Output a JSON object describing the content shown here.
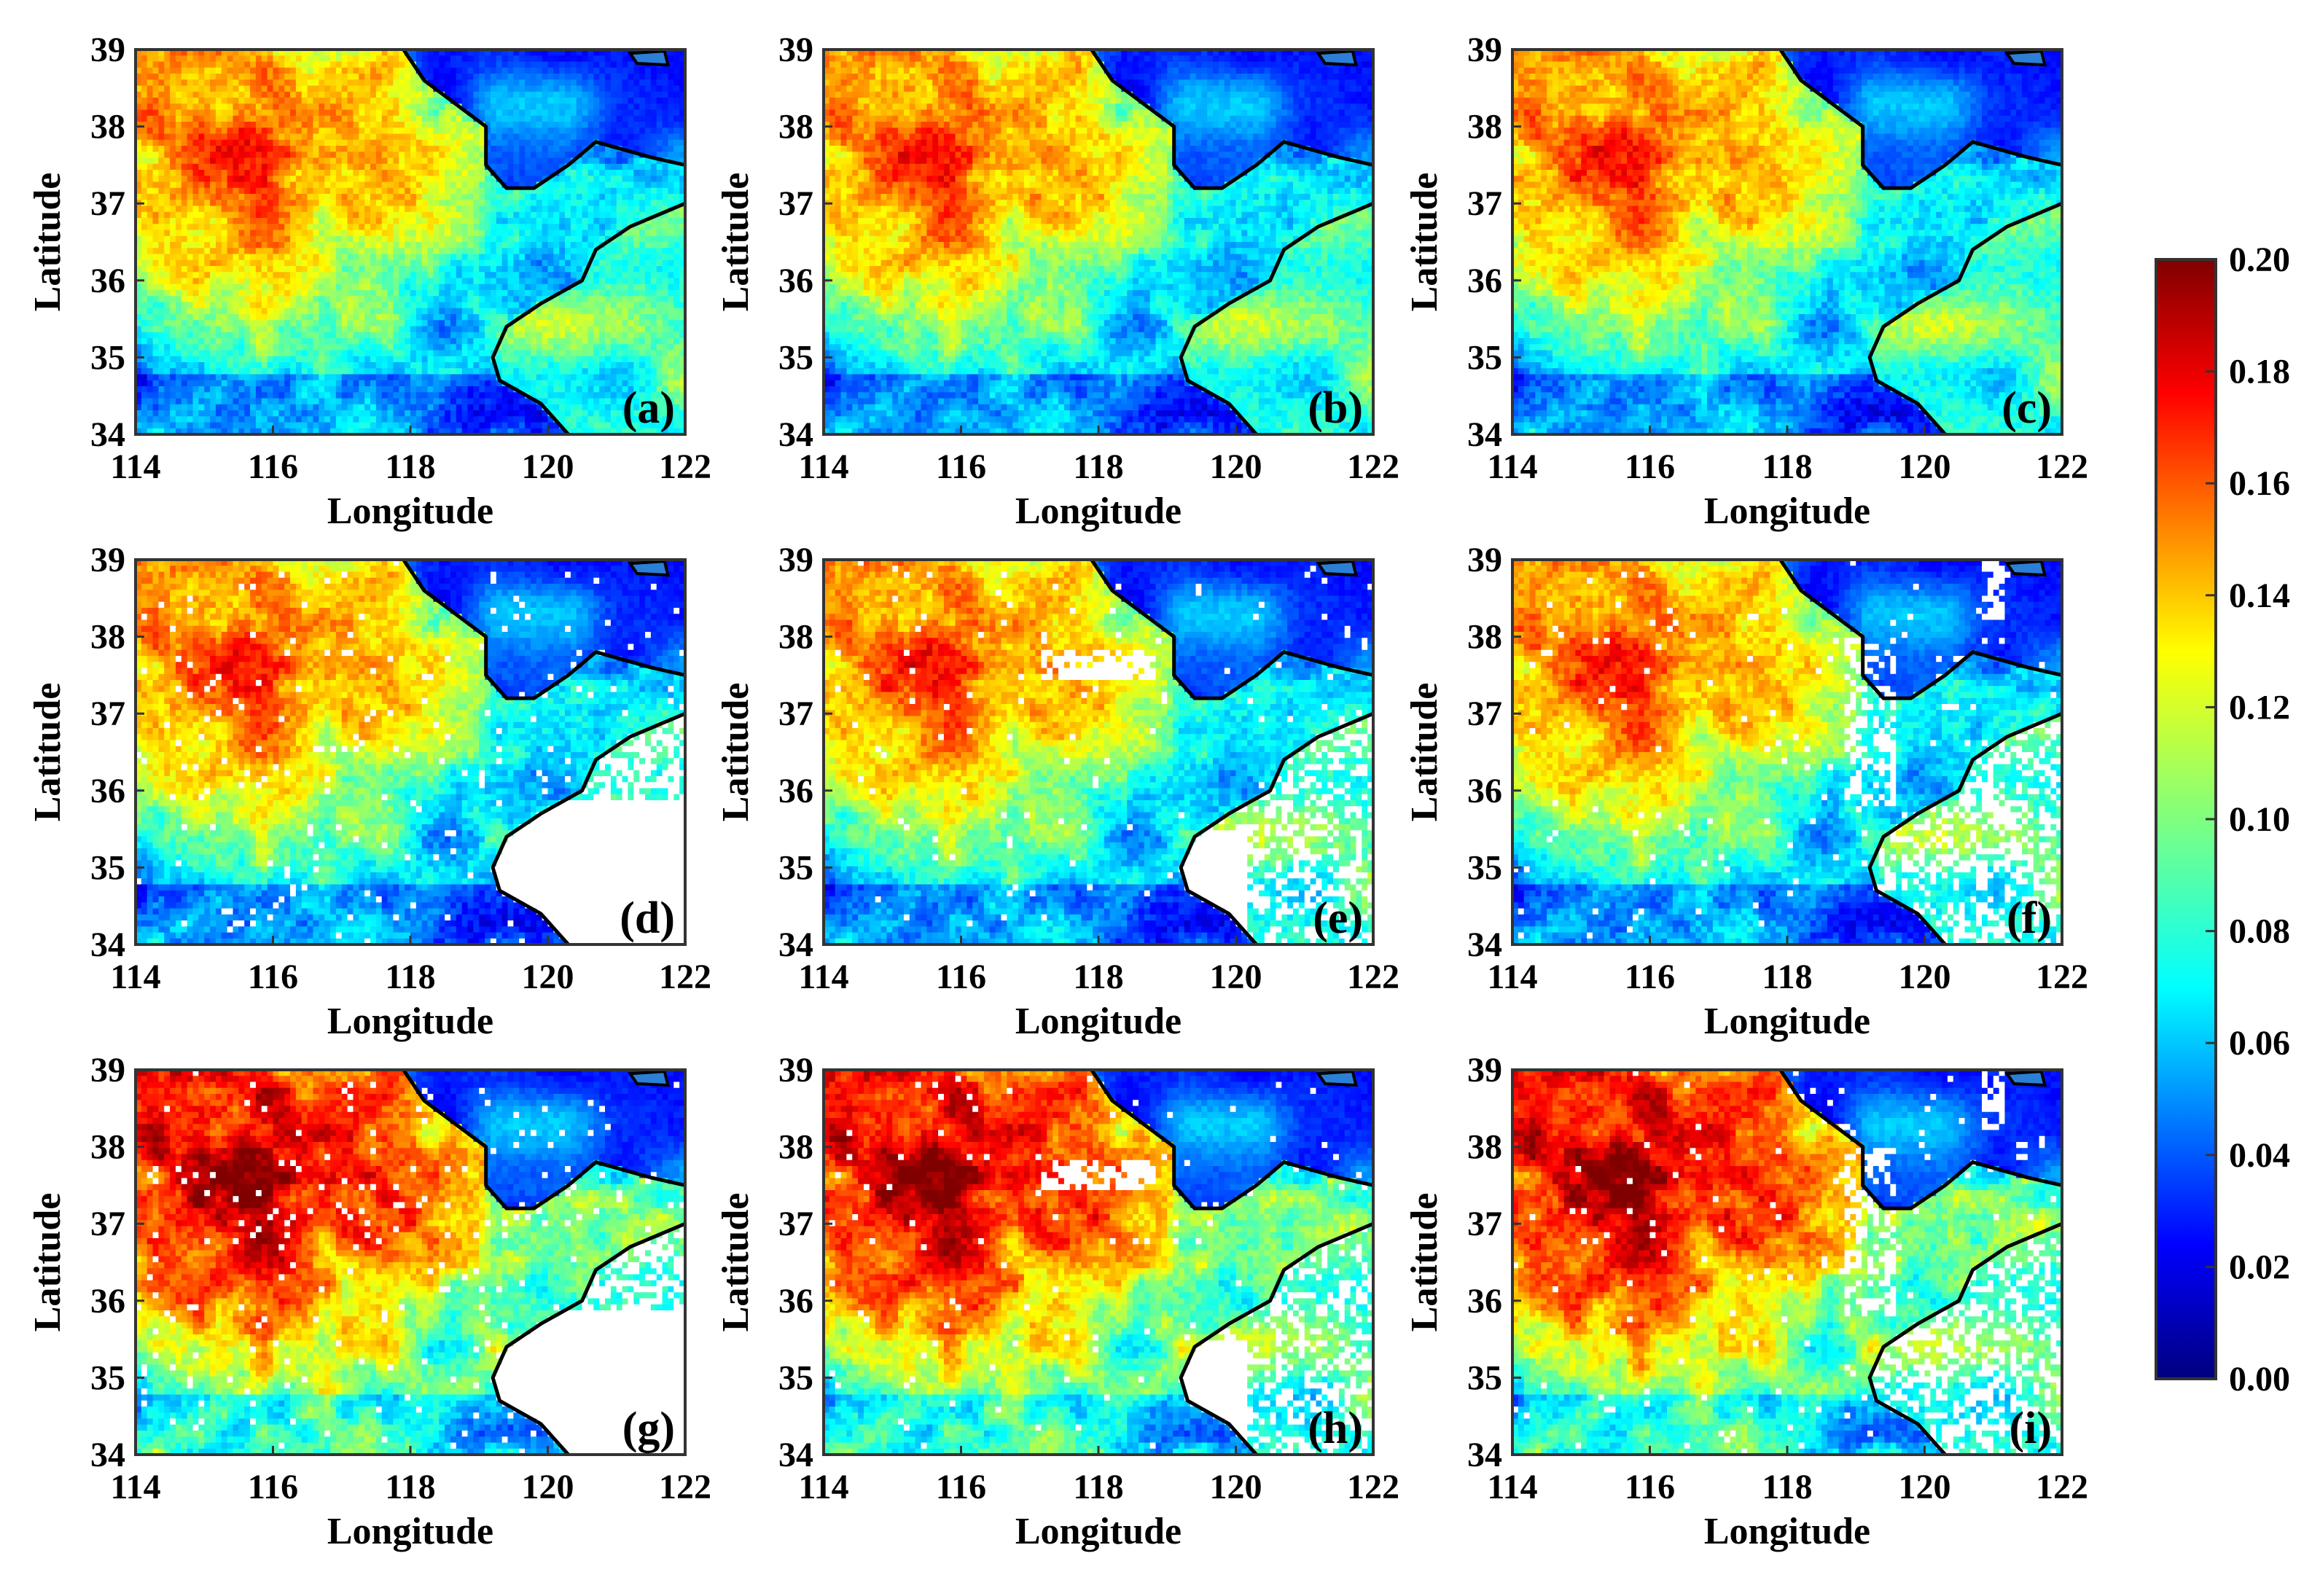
{
  "chart_data": {
    "type": "heatmap",
    "description_grid": "3x3 panel grid of gridded spatial fields",
    "xlabel": "Longitude",
    "ylabel": "Latitude",
    "xlim": [
      114,
      122
    ],
    "ylim": [
      34,
      39
    ],
    "x_ticks": [
      "114",
      "116",
      "118",
      "120",
      "122"
    ],
    "y_ticks": [
      "34",
      "35",
      "36",
      "37",
      "38",
      "39"
    ],
    "colorbar": {
      "min": 0.0,
      "max": 0.2,
      "colormap": "jet",
      "ticks": [
        "0.00",
        "0.02",
        "0.04",
        "0.06",
        "0.08",
        "0.10",
        "0.12",
        "0.14",
        "0.16",
        "0.18",
        "0.20"
      ]
    },
    "panels": [
      {
        "label": "(a)",
        "missing": "none",
        "level": "base"
      },
      {
        "label": "(b)",
        "missing": "none",
        "level": "base"
      },
      {
        "label": "(c)",
        "missing": "none",
        "level": "base"
      },
      {
        "label": "(d)",
        "missing": "sea-southeast",
        "level": "base"
      },
      {
        "label": "(e)",
        "missing": "band-mid",
        "level": "base"
      },
      {
        "label": "(f)",
        "missing": "band-east",
        "level": "base"
      },
      {
        "label": "(g)",
        "missing": "sea-southeast",
        "level": "high"
      },
      {
        "label": "(h)",
        "missing": "band-mid",
        "level": "high"
      },
      {
        "label": "(i)",
        "missing": "band-east",
        "level": "high"
      }
    ]
  },
  "colors": {
    "frame": "#333333",
    "coast": "#000000",
    "missing": "#ffffff"
  }
}
